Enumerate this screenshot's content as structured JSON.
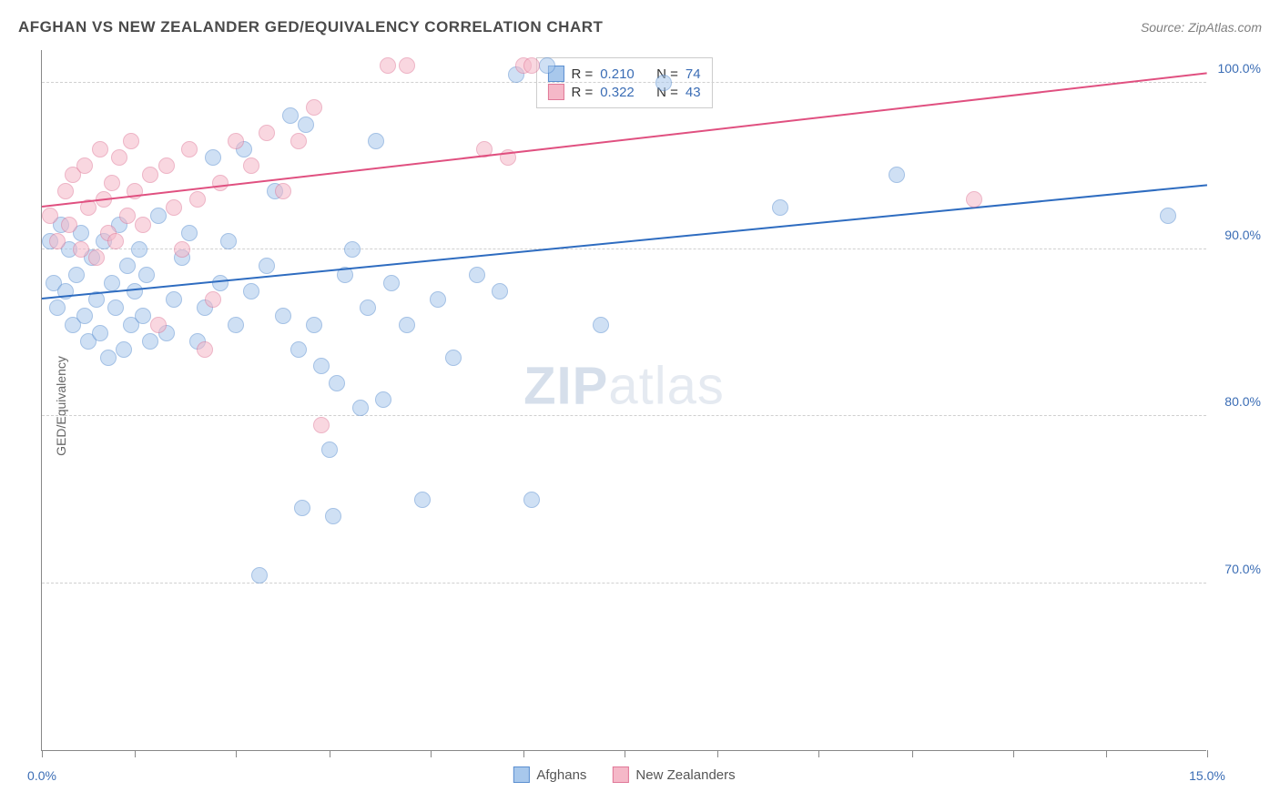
{
  "header": {
    "title": "AFGHAN VS NEW ZEALANDER GED/EQUIVALENCY CORRELATION CHART",
    "source": "Source: ZipAtlas.com"
  },
  "chart": {
    "type": "scatter",
    "ylabel": "GED/Equivalency",
    "xlim": [
      0,
      15
    ],
    "ylim": [
      60,
      102
    ],
    "xtick_positions": [
      0,
      1.2,
      2.5,
      3.7,
      5.0,
      6.2,
      7.5,
      8.7,
      10.0,
      11.2,
      12.5,
      13.7,
      15.0
    ],
    "xtick_labels": {
      "0": "0.0%",
      "15": "15.0%"
    },
    "ytick_positions": [
      70,
      80,
      90,
      100
    ],
    "ytick_labels": {
      "70": "70.0%",
      "80": "80.0%",
      "90": "90.0%",
      "100": "100.0%"
    },
    "grid_color": "#d0d0d0",
    "background_color": "#ffffff",
    "marker_size": 18,
    "marker_opacity": 0.55,
    "watermark": "ZIPatlas",
    "series": [
      {
        "name": "Afghans",
        "color_fill": "#a8c8ec",
        "color_stroke": "#5b8fd0",
        "R": "0.210",
        "N": "74",
        "trend": {
          "x1": 0,
          "y1": 87.0,
          "x2": 15,
          "y2": 93.8,
          "color": "#2e6cc0",
          "width": 2
        },
        "points": [
          [
            0.1,
            90.5
          ],
          [
            0.15,
            88.0
          ],
          [
            0.2,
            86.5
          ],
          [
            0.25,
            91.5
          ],
          [
            0.3,
            87.5
          ],
          [
            0.35,
            90.0
          ],
          [
            0.4,
            85.5
          ],
          [
            0.45,
            88.5
          ],
          [
            0.5,
            91.0
          ],
          [
            0.55,
            86.0
          ],
          [
            0.6,
            84.5
          ],
          [
            0.65,
            89.5
          ],
          [
            0.7,
            87.0
          ],
          [
            0.75,
            85.0
          ],
          [
            0.8,
            90.5
          ],
          [
            0.85,
            83.5
          ],
          [
            0.9,
            88.0
          ],
          [
            0.95,
            86.5
          ],
          [
            1.0,
            91.5
          ],
          [
            1.05,
            84.0
          ],
          [
            1.1,
            89.0
          ],
          [
            1.15,
            85.5
          ],
          [
            1.2,
            87.5
          ],
          [
            1.25,
            90.0
          ],
          [
            1.3,
            86.0
          ],
          [
            1.35,
            88.5
          ],
          [
            1.4,
            84.5
          ],
          [
            1.5,
            92.0
          ],
          [
            1.6,
            85.0
          ],
          [
            1.7,
            87.0
          ],
          [
            1.8,
            89.5
          ],
          [
            1.9,
            91.0
          ],
          [
            2.0,
            84.5
          ],
          [
            2.1,
            86.5
          ],
          [
            2.2,
            95.5
          ],
          [
            2.3,
            88.0
          ],
          [
            2.4,
            90.5
          ],
          [
            2.5,
            85.5
          ],
          [
            2.6,
            96.0
          ],
          [
            2.7,
            87.5
          ],
          [
            2.8,
            70.5
          ],
          [
            2.9,
            89.0
          ],
          [
            3.0,
            93.5
          ],
          [
            3.1,
            86.0
          ],
          [
            3.2,
            98.0
          ],
          [
            3.3,
            84.0
          ],
          [
            3.35,
            74.5
          ],
          [
            3.4,
            97.5
          ],
          [
            3.5,
            85.5
          ],
          [
            3.6,
            83.0
          ],
          [
            3.7,
            78.0
          ],
          [
            3.75,
            74.0
          ],
          [
            3.8,
            82.0
          ],
          [
            3.9,
            88.5
          ],
          [
            4.0,
            90.0
          ],
          [
            4.1,
            80.5
          ],
          [
            4.2,
            86.5
          ],
          [
            4.3,
            96.5
          ],
          [
            4.4,
            81.0
          ],
          [
            4.5,
            88.0
          ],
          [
            4.7,
            85.5
          ],
          [
            4.9,
            75.0
          ],
          [
            5.1,
            87.0
          ],
          [
            5.3,
            83.5
          ],
          [
            5.6,
            88.5
          ],
          [
            5.9,
            87.5
          ],
          [
            6.1,
            100.5
          ],
          [
            6.3,
            75.0
          ],
          [
            6.5,
            101.0
          ],
          [
            7.2,
            85.5
          ],
          [
            8.0,
            100.0
          ],
          [
            9.5,
            92.5
          ],
          [
            11.0,
            94.5
          ],
          [
            14.5,
            92.0
          ]
        ]
      },
      {
        "name": "New Zealanders",
        "color_fill": "#f5b8c8",
        "color_stroke": "#e07898",
        "R": "0.322",
        "N": "43",
        "trend": {
          "x1": 0,
          "y1": 92.5,
          "x2": 15,
          "y2": 100.5,
          "color": "#e05080",
          "width": 2
        },
        "points": [
          [
            0.1,
            92.0
          ],
          [
            0.2,
            90.5
          ],
          [
            0.3,
            93.5
          ],
          [
            0.35,
            91.5
          ],
          [
            0.4,
            94.5
          ],
          [
            0.5,
            90.0
          ],
          [
            0.55,
            95.0
          ],
          [
            0.6,
            92.5
          ],
          [
            0.7,
            89.5
          ],
          [
            0.75,
            96.0
          ],
          [
            0.8,
            93.0
          ],
          [
            0.85,
            91.0
          ],
          [
            0.9,
            94.0
          ],
          [
            0.95,
            90.5
          ],
          [
            1.0,
            95.5
          ],
          [
            1.1,
            92.0
          ],
          [
            1.15,
            96.5
          ],
          [
            1.2,
            93.5
          ],
          [
            1.3,
            91.5
          ],
          [
            1.4,
            94.5
          ],
          [
            1.5,
            85.5
          ],
          [
            1.6,
            95.0
          ],
          [
            1.7,
            92.5
          ],
          [
            1.8,
            90.0
          ],
          [
            1.9,
            96.0
          ],
          [
            2.0,
            93.0
          ],
          [
            2.1,
            84.0
          ],
          [
            2.2,
            87.0
          ],
          [
            2.3,
            94.0
          ],
          [
            2.5,
            96.5
          ],
          [
            2.7,
            95.0
          ],
          [
            2.9,
            97.0
          ],
          [
            3.1,
            93.5
          ],
          [
            3.3,
            96.5
          ],
          [
            3.5,
            98.5
          ],
          [
            3.6,
            79.5
          ],
          [
            4.45,
            101.0
          ],
          [
            4.7,
            101.0
          ],
          [
            5.7,
            96.0
          ],
          [
            6.0,
            95.5
          ],
          [
            6.2,
            101.0
          ],
          [
            6.3,
            101.0
          ],
          [
            12.0,
            93.0
          ]
        ]
      }
    ]
  },
  "legend_top": {
    "r_label": "R =",
    "n_label": "N ="
  },
  "legend_bottom": {
    "items": [
      "Afghans",
      "New Zealanders"
    ]
  }
}
